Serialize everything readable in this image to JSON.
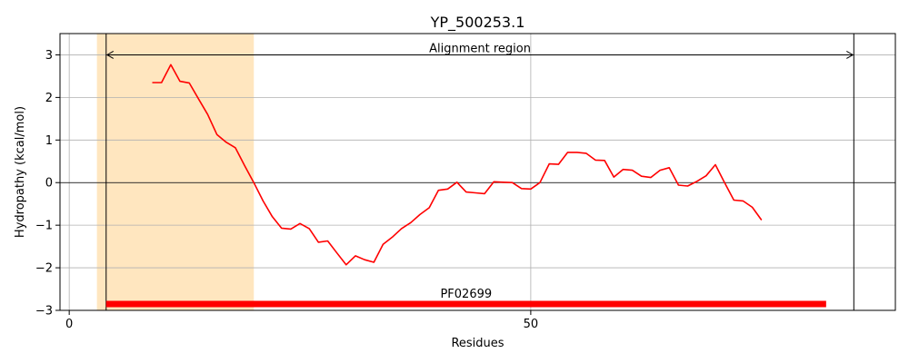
{
  "chart_data": {
    "type": "line",
    "title": "YP_500253.1",
    "xlabel": "Residues",
    "ylabel": "Hydropathy (kcal/mol)",
    "xlim": [
      -1,
      89.5
    ],
    "ylim": [
      -3,
      3.5
    ],
    "xticks": [
      0,
      50
    ],
    "yticks": [
      -3,
      -2,
      -1,
      0,
      1,
      2,
      3
    ],
    "ytick_labels": [
      "−3",
      "−2",
      "−1",
      "0",
      "1",
      "2",
      "3"
    ],
    "grid": true,
    "zero_line": true,
    "series": [
      {
        "color": "#ff0000",
        "x": [
          9,
          10,
          11,
          12,
          13,
          14,
          15,
          16,
          17,
          18,
          19,
          20,
          21,
          22,
          23,
          24,
          25,
          26,
          27,
          28,
          29,
          30,
          31,
          32,
          33,
          34,
          35,
          36,
          37,
          38,
          39,
          40,
          41,
          42,
          43,
          44,
          45,
          46,
          47,
          48,
          49,
          50,
          51,
          52,
          53,
          54,
          55,
          56,
          57,
          58,
          59,
          60,
          61,
          62,
          63,
          64,
          65,
          66,
          67,
          68,
          69,
          70,
          71,
          72,
          73,
          74,
          75
        ],
        "y": [
          2.35,
          2.35,
          2.77,
          2.38,
          2.34,
          1.97,
          1.6,
          1.13,
          0.95,
          0.82,
          0.4,
          0.0,
          -0.43,
          -0.8,
          -1.07,
          -1.09,
          -0.96,
          -1.08,
          -1.4,
          -1.37,
          -1.65,
          -1.93,
          -1.72,
          -1.81,
          -1.87,
          -1.45,
          -1.28,
          -1.08,
          -0.94,
          -0.75,
          -0.59,
          -0.18,
          -0.15,
          0.01,
          -0.22,
          -0.24,
          -0.26,
          0.02,
          0.01,
          0.0,
          -0.14,
          -0.15,
          0.0,
          0.44,
          0.43,
          0.71,
          0.71,
          0.69,
          0.53,
          0.52,
          0.13,
          0.31,
          0.29,
          0.15,
          0.12,
          0.29,
          0.35,
          -0.06,
          -0.08,
          0.03,
          0.16,
          0.42,
          0.0,
          -0.41,
          -0.43,
          -0.58,
          -0.88
        ]
      }
    ],
    "shaded_region": {
      "x": [
        3,
        20
      ],
      "color": "#ffe6bf"
    },
    "alignment_region": {
      "label": "Alignment region",
      "x": [
        4,
        85
      ],
      "y": 3
    },
    "domain": {
      "label": "PF02699",
      "x": [
        4,
        82
      ],
      "y": -2.85,
      "color": "#ff0000"
    }
  }
}
